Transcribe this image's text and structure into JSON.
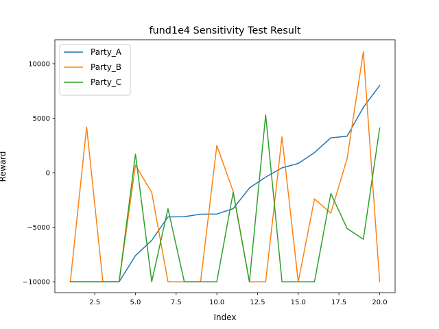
{
  "chart_data": {
    "type": "line",
    "title": "fund1e4 Sensitivity Test Result",
    "xlabel": "Index",
    "ylabel": "Reward",
    "xlim": [
      0.05,
      20.95
    ],
    "ylim": [
      -11000,
      12200
    ],
    "xticks": [
      2.5,
      5.0,
      7.5,
      10.0,
      12.5,
      15.0,
      17.5,
      20.0
    ],
    "xtick_labels": [
      "2.5",
      "5.0",
      "7.5",
      "10.0",
      "12.5",
      "15.0",
      "17.5",
      "20.0"
    ],
    "yticks": [
      -10000,
      -5000,
      0,
      5000,
      10000
    ],
    "ytick_labels": [
      "−10000",
      "−5000",
      "0",
      "5000",
      "10000"
    ],
    "grid": false,
    "legend_position": "top-left",
    "x": [
      1,
      2,
      3,
      4,
      5,
      6,
      7,
      8,
      9,
      10,
      11,
      12,
      13,
      14,
      15,
      16,
      17,
      18,
      19,
      20
    ],
    "series": [
      {
        "name": "Party_A",
        "color": "#1f77b4",
        "values": [
          -10000,
          -10000,
          -10000,
          -10000,
          -7600,
          -6200,
          -4050,
          -4030,
          -3800,
          -3780,
          -3300,
          -1400,
          -400,
          450,
          850,
          1850,
          3200,
          3350,
          6000,
          8000
        ]
      },
      {
        "name": "Party_B",
        "color": "#ff7f0e",
        "values": [
          -10000,
          4200,
          -10000,
          -10000,
          700,
          -1800,
          -10000,
          -10000,
          -10000,
          2500,
          -1700,
          -10000,
          -10000,
          3300,
          -10000,
          -2400,
          -3700,
          1300,
          11100,
          -10000
        ]
      },
      {
        "name": "Party_C",
        "color": "#2ca02c",
        "values": [
          -10000,
          -10000,
          -10000,
          -10000,
          1700,
          -10000,
          -3300,
          -10000,
          -10000,
          -10000,
          -1800,
          -10000,
          5300,
          -10000,
          -10000,
          -10000,
          -1900,
          -5100,
          -6100,
          4100
        ]
      }
    ]
  }
}
